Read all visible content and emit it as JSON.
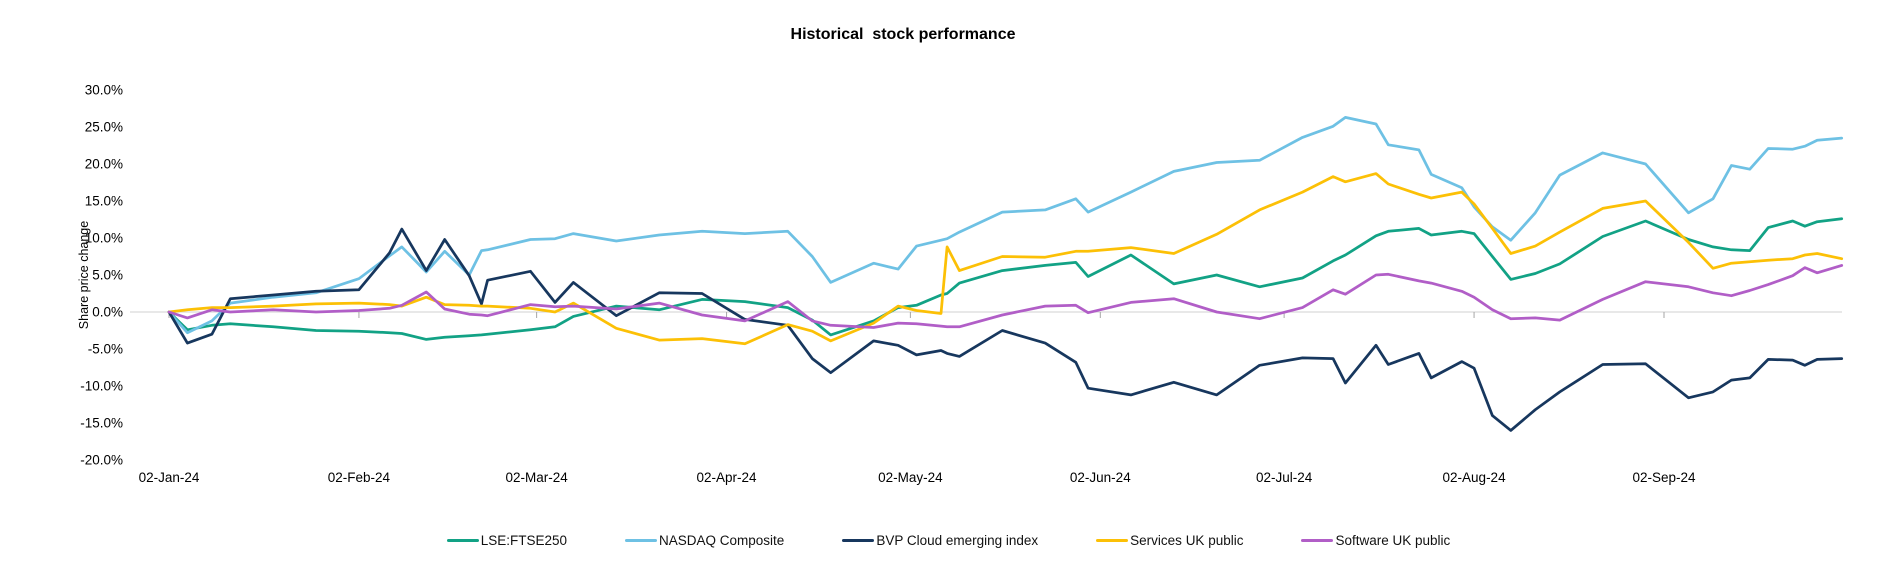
{
  "chart_data": {
    "type": "line",
    "title": "Historical  stock performance",
    "ylabel": "Share price change",
    "legend_position": "bottom",
    "grid": "zero-line-only",
    "style": {
      "gridline_color": "#D9D9D9",
      "tick_color": "#A6A6A6",
      "text_color": "#000000",
      "background": "#FFFFFF"
    },
    "y_axis": {
      "max": 30,
      "min": -20,
      "step": 5,
      "unit": "%",
      "tick_labels": [
        "30.0%",
        "25.0%",
        "20.0%",
        "15.0%",
        "10.0%",
        "5.0%",
        "0.0%",
        "-5.0%",
        "-10.0%",
        "-15.0%",
        "-20.0%"
      ]
    },
    "x_axis": {
      "ticks": [
        {
          "date": "2024-01-02",
          "label": "02-Jan-24"
        },
        {
          "date": "2024-02-02",
          "label": "02-Feb-24"
        },
        {
          "date": "2024-03-02",
          "label": "02-Mar-24"
        },
        {
          "date": "2024-04-02",
          "label": "02-Apr-24"
        },
        {
          "date": "2024-05-02",
          "label": "02-May-24"
        },
        {
          "date": "2024-06-02",
          "label": "02-Jun-24"
        },
        {
          "date": "2024-07-02",
          "label": "02-Jul-24"
        },
        {
          "date": "2024-08-02",
          "label": "02-Aug-24"
        },
        {
          "date": "2024-09-02",
          "label": "02-Sep-24"
        }
      ]
    },
    "dates": [
      "2024-01-02",
      "2024-01-05",
      "2024-01-09",
      "2024-01-12",
      "2024-01-19",
      "2024-01-26",
      "2024-02-02",
      "2024-02-07",
      "2024-02-09",
      "2024-02-13",
      "2024-02-16",
      "2024-02-20",
      "2024-02-22",
      "2024-02-23",
      "2024-03-01",
      "2024-03-05",
      "2024-03-08",
      "2024-03-15",
      "2024-03-22",
      "2024-03-29",
      "2024-04-05",
      "2024-04-12",
      "2024-04-16",
      "2024-04-19",
      "2024-04-26",
      "2024-04-30",
      "2024-05-03",
      "2024-05-07",
      "2024-05-08",
      "2024-05-10",
      "2024-05-17",
      "2024-05-24",
      "2024-05-29",
      "2024-05-31",
      "2024-06-07",
      "2024-06-14",
      "2024-06-21",
      "2024-06-28",
      "2024-07-05",
      "2024-07-10",
      "2024-07-12",
      "2024-07-17",
      "2024-07-19",
      "2024-07-24",
      "2024-07-26",
      "2024-07-31",
      "2024-08-02",
      "2024-08-05",
      "2024-08-08",
      "2024-08-12",
      "2024-08-16",
      "2024-08-23",
      "2024-08-30",
      "2024-09-06",
      "2024-09-10",
      "2024-09-13",
      "2024-09-16",
      "2024-09-19",
      "2024-09-23",
      "2024-09-25",
      "2024-09-27",
      "2024-10-01"
    ],
    "series": [
      {
        "id": "lse-ftse250",
        "name": "LSE:FTSE250",
        "color": "#12A285",
        "values": [
          0,
          -2.4,
          -1.8,
          -1.6,
          -2.0,
          -2.5,
          -2.6,
          -2.8,
          -2.9,
          -3.7,
          -3.4,
          -3.2,
          -3.1,
          -3.0,
          -2.4,
          -2.0,
          -0.6,
          0.8,
          0.3,
          1.7,
          1.4,
          0.6,
          -1.1,
          -3.1,
          -1.2,
          0.6,
          0.9,
          2.3,
          2.5,
          3.9,
          5.6,
          6.3,
          6.7,
          4.8,
          7.7,
          3.8,
          5.0,
          3.4,
          4.6,
          6.9,
          7.7,
          10.3,
          10.9,
          11.3,
          10.4,
          10.9,
          10.6,
          7.5,
          4.4,
          5.2,
          6.5,
          10.2,
          12.3,
          9.8,
          8.8,
          8.4,
          8.3,
          11.4,
          12.3,
          11.6,
          12.2,
          12.6
        ]
      },
      {
        "id": "nasdaq-composite",
        "name": "NASDAQ Composite",
        "color": "#6EC1E4",
        "values": [
          0,
          -2.8,
          -1.2,
          1.2,
          2.0,
          2.6,
          4.5,
          7.6,
          8.8,
          5.4,
          8.2,
          5.0,
          8.3,
          8.4,
          9.8,
          9.9,
          10.6,
          9.6,
          10.4,
          10.9,
          10.6,
          10.9,
          7.5,
          4.0,
          6.6,
          5.8,
          8.9,
          9.7,
          9.9,
          10.8,
          13.5,
          13.8,
          15.3,
          13.5,
          16.2,
          19.0,
          20.2,
          20.5,
          23.6,
          25.1,
          26.3,
          25.4,
          22.6,
          21.9,
          18.6,
          16.8,
          14.2,
          11.5,
          9.7,
          13.4,
          18.5,
          21.5,
          20.0,
          13.4,
          15.3,
          19.8,
          19.3,
          22.1,
          22.0,
          22.4,
          23.2,
          23.5
        ]
      },
      {
        "id": "bvp-cloud-emerging-index",
        "name": "BVP Cloud emerging index",
        "color": "#17375E",
        "values": [
          0,
          -4.2,
          -3.0,
          1.8,
          2.3,
          2.8,
          3.0,
          8.0,
          11.2,
          5.6,
          9.8,
          4.9,
          1.1,
          4.3,
          5.5,
          1.3,
          4.0,
          -0.5,
          2.6,
          2.5,
          -1.0,
          -1.8,
          -6.3,
          -8.2,
          -3.9,
          -4.5,
          -5.8,
          -5.2,
          -5.6,
          -6.0,
          -2.5,
          -4.2,
          -6.8,
          -10.3,
          -11.2,
          -9.5,
          -11.2,
          -7.2,
          -6.2,
          -6.3,
          -9.6,
          -4.5,
          -7.1,
          -5.6,
          -8.9,
          -6.7,
          -7.6,
          -14.0,
          -16.0,
          -13.2,
          -10.8,
          -7.1,
          -7.0,
          -11.6,
          -10.8,
          -9.2,
          -8.9,
          -6.4,
          -6.5,
          -7.2,
          -6.4,
          -6.3
        ]
      },
      {
        "id": "services-uk-public",
        "name": "Services UK public",
        "color": "#FCC006",
        "values": [
          0,
          0.3,
          0.6,
          0.6,
          0.8,
          1.1,
          1.2,
          1.0,
          0.8,
          2.0,
          1.0,
          0.9,
          0.8,
          0.8,
          0.5,
          0.0,
          1.2,
          -2.2,
          -3.8,
          -3.6,
          -4.3,
          -1.7,
          -2.6,
          -3.9,
          -1.5,
          0.8,
          0.2,
          -0.2,
          8.8,
          5.6,
          7.5,
          7.4,
          8.2,
          8.2,
          8.7,
          7.9,
          10.5,
          13.8,
          16.2,
          18.3,
          17.6,
          18.7,
          17.3,
          15.9,
          15.4,
          16.2,
          14.6,
          11.3,
          7.9,
          8.9,
          10.8,
          14.0,
          15.0,
          9.4,
          5.9,
          6.6,
          6.8,
          7.0,
          7.2,
          7.7,
          7.9,
          7.2
        ]
      },
      {
        "id": "software-uk-public",
        "name": "Software UK public",
        "color": "#B15EC7",
        "values": [
          0,
          -0.8,
          0.3,
          0.0,
          0.3,
          0.0,
          0.2,
          0.5,
          0.9,
          2.7,
          0.4,
          -0.3,
          -0.4,
          -0.5,
          1.0,
          0.7,
          0.8,
          0.4,
          1.2,
          -0.4,
          -1.2,
          1.4,
          -1.2,
          -1.8,
          -2.1,
          -1.5,
          -1.6,
          -1.9,
          -2.0,
          -2.0,
          -0.4,
          0.8,
          0.9,
          -0.1,
          1.3,
          1.8,
          0.0,
          -0.9,
          0.6,
          3.0,
          2.4,
          5.0,
          5.1,
          4.2,
          3.9,
          2.8,
          2.0,
          0.3,
          -0.9,
          -0.8,
          -1.1,
          1.7,
          4.1,
          3.4,
          2.6,
          2.2,
          2.9,
          3.7,
          4.9,
          6.0,
          5.3,
          6.3
        ]
      }
    ]
  }
}
